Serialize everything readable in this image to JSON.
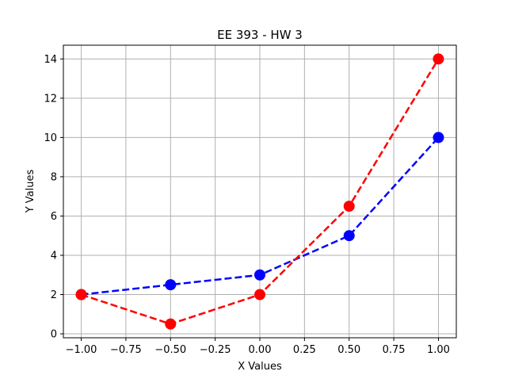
{
  "chart_data": {
    "type": "line",
    "title": "EE 393 - HW 3",
    "xlabel": "X Values",
    "ylabel": "Y Values",
    "xlim": [
      -1.1,
      1.1
    ],
    "ylim": [
      -0.2,
      14.7
    ],
    "grid": true,
    "x_ticks": [
      -1.0,
      -0.75,
      -0.5,
      -0.25,
      0.0,
      0.25,
      0.5,
      0.75,
      1.0
    ],
    "x_tick_labels": [
      "−1.00",
      "−0.75",
      "−0.50",
      "−0.25",
      "0.00",
      "0.25",
      "0.50",
      "0.75",
      "1.00"
    ],
    "y_ticks": [
      0,
      2,
      4,
      6,
      8,
      10,
      12,
      14
    ],
    "y_tick_labels": [
      "0",
      "2",
      "4",
      "6",
      "8",
      "10",
      "12",
      "14"
    ],
    "x": [
      -1.0,
      -0.5,
      0.0,
      0.5,
      1.0
    ],
    "series": [
      {
        "color": "#0000ff",
        "line_style": "dashed",
        "marker": "circle",
        "values": [
          2,
          2.5,
          3,
          5,
          10
        ]
      },
      {
        "color": "#ff0000",
        "line_style": "dashed",
        "marker": "circle",
        "values": [
          2,
          0.5,
          2,
          6.5,
          14
        ]
      }
    ]
  }
}
